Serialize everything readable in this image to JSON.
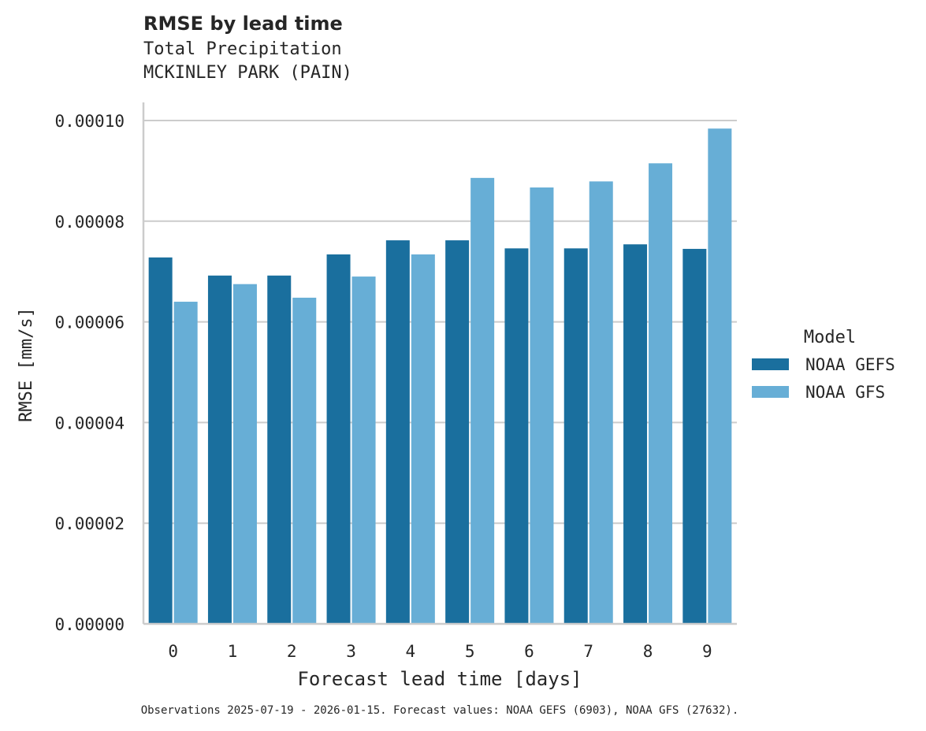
{
  "title": "RMSE by lead time",
  "subtitle1": "Total Precipitation",
  "subtitle2": "MCKINLEY PARK (PAIN)",
  "footer": "Observations 2025-07-19 - 2026-01-15. Forecast values: NOAA GEFS (6903), NOAA GFS (27632).",
  "chart_data": {
    "type": "bar",
    "title": "RMSE by lead time",
    "subtitle": "Total Precipitation / MCKINLEY PARK (PAIN)",
    "xlabel": "Forecast lead time [days]",
    "ylabel": "RMSE [mm/s]",
    "categories": [
      "0",
      "1",
      "2",
      "3",
      "4",
      "5",
      "6",
      "7",
      "8",
      "9"
    ],
    "ylim": [
      0,
      0.000104
    ],
    "yticks": [
      "0.00000",
      "0.00002",
      "0.00004",
      "0.00006",
      "0.00008",
      "0.00010"
    ],
    "grid": "horizontal",
    "legend": {
      "title": "Model",
      "position": "right"
    },
    "series": [
      {
        "name": "NOAA GEFS",
        "color": "#1a6f9e",
        "values": [
          7.28e-05,
          6.92e-05,
          6.92e-05,
          7.34e-05,
          7.62e-05,
          7.62e-05,
          7.46e-05,
          7.46e-05,
          7.54e-05,
          7.45e-05
        ]
      },
      {
        "name": "NOAA GFS",
        "color": "#67aed6",
        "values": [
          6.4e-05,
          6.75e-05,
          6.48e-05,
          6.9e-05,
          7.34e-05,
          8.86e-05,
          8.67e-05,
          8.79e-05,
          9.15e-05,
          9.84e-05
        ]
      }
    ]
  }
}
